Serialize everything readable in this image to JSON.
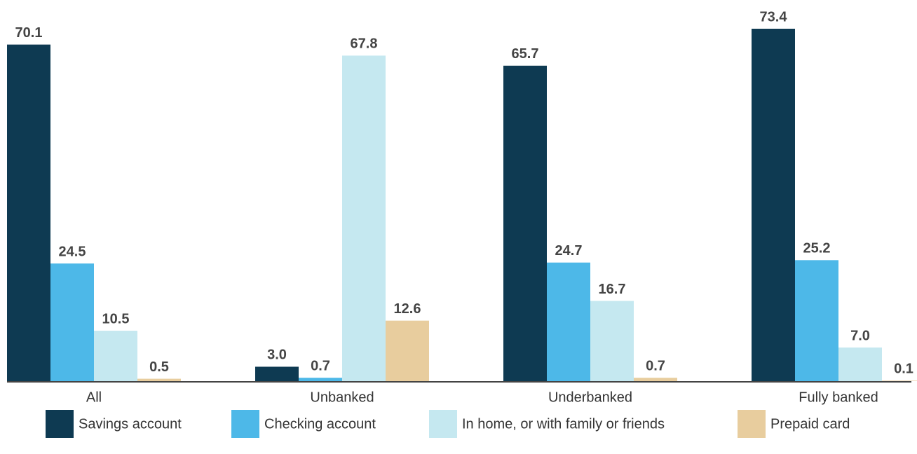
{
  "chart_data": {
    "type": "bar",
    "categories": [
      "All",
      "Unbanked",
      "Underbanked",
      "Fully banked"
    ],
    "series": [
      {
        "name": "Savings account",
        "color": "#0e3a52",
        "values": [
          70.1,
          3.0,
          65.7,
          73.4
        ],
        "value_labels": [
          "70.1",
          "3.0",
          "65.7",
          "73.4"
        ]
      },
      {
        "name": "Checking account",
        "color": "#4db8e8",
        "values": [
          24.5,
          0.7,
          24.7,
          25.2
        ],
        "value_labels": [
          "24.5",
          "0.7",
          "24.7",
          "25.2"
        ]
      },
      {
        "name": "In home, or with family or friends",
        "color": "#c5e8f0",
        "values": [
          10.5,
          67.8,
          16.7,
          7.0
        ],
        "value_labels": [
          "10.5",
          "67.8",
          "16.7",
          "7.0"
        ]
      },
      {
        "name": "Prepaid card",
        "color": "#e8cd9e",
        "values": [
          0.5,
          12.6,
          0.7,
          0.1
        ],
        "value_labels": [
          "0.5",
          "12.6",
          "0.7",
          "0.1"
        ]
      }
    ]
  }
}
